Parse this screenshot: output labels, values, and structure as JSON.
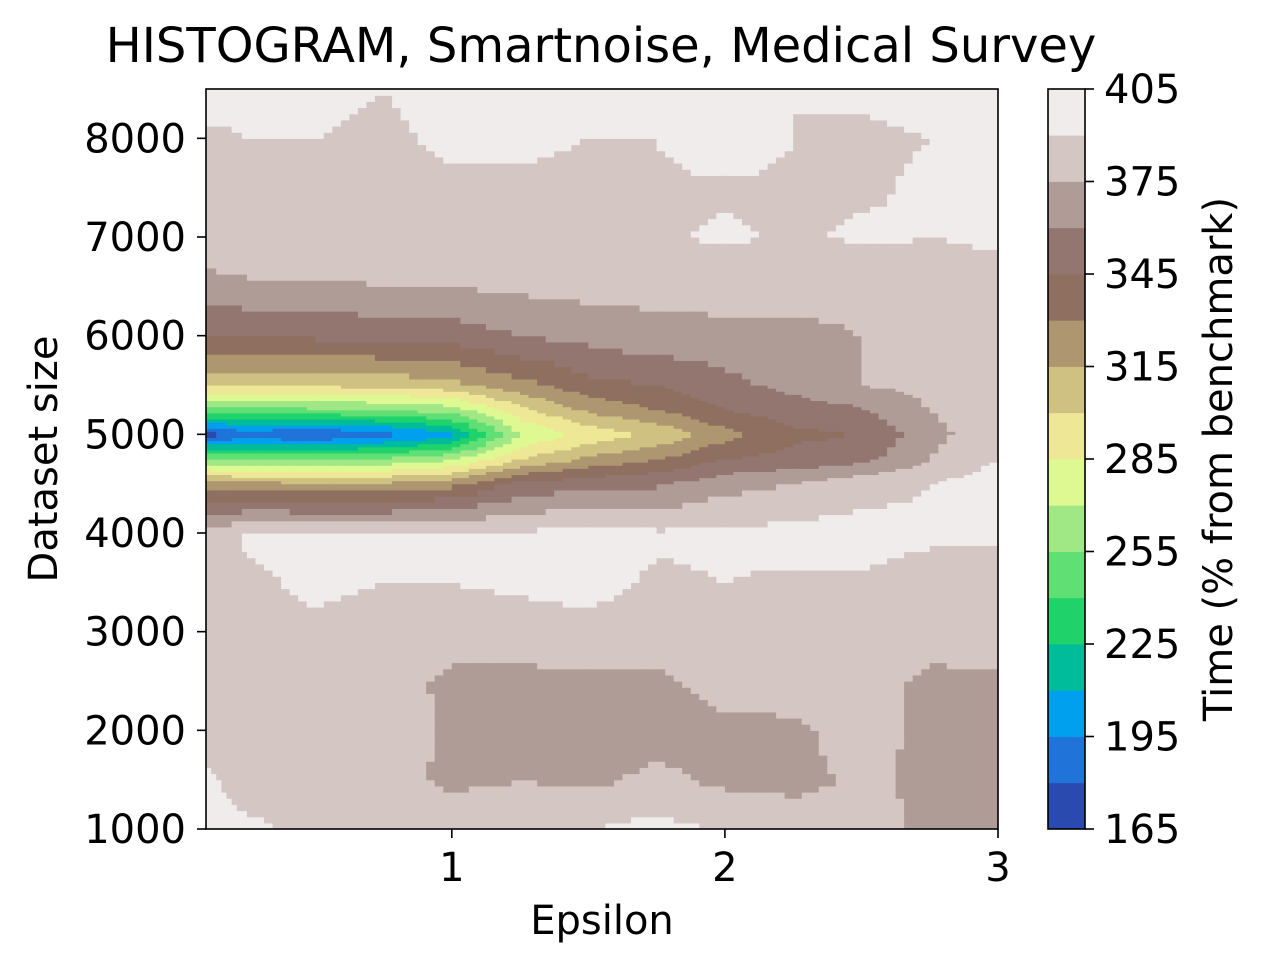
{
  "chart_data": {
    "type": "heatmap",
    "title": "HISTOGRAM, Smartnoise, Medical Survey",
    "xlabel": "Epsilon",
    "ylabel": "Dataset size",
    "colorbar_label": "Time (% from benchmark)",
    "xlim": [
      0.1,
      3.0
    ],
    "ylim": [
      1000,
      8500
    ],
    "xticks": [
      "1",
      "2",
      "3"
    ],
    "xtick_values": [
      1,
      2,
      3
    ],
    "yticks": [
      "1000",
      "2000",
      "3000",
      "4000",
      "5000",
      "6000",
      "7000",
      "8000"
    ],
    "ytick_values": [
      1000,
      2000,
      3000,
      4000,
      5000,
      6000,
      7000,
      8000
    ],
    "colorbar_ticks": [
      "165",
      "195",
      "225",
      "255",
      "285",
      "315",
      "345",
      "375",
      "405"
    ],
    "colorbar_tick_values": [
      165,
      195,
      225,
      255,
      285,
      315,
      345,
      375,
      405
    ],
    "colorbar_range": [
      165,
      405
    ],
    "levels": [
      165,
      180,
      195,
      210,
      225,
      240,
      255,
      270,
      285,
      300,
      315,
      330,
      345,
      360,
      375,
      390,
      405
    ],
    "level_colors": [
      "#2b4aaf",
      "#1f73d9",
      "#00a0ef",
      "#00bc9a",
      "#1fd36a",
      "#60df75",
      "#a0e885",
      "#dff992",
      "#eee896",
      "#cec182",
      "#ae9670",
      "#8f7060",
      "#937670",
      "#b09c97",
      "#d4c6c3",
      "#f0ecec"
    ],
    "x": [
      0.1,
      0.25,
      0.5,
      0.75,
      1.0,
      1.25,
      1.5,
      1.75,
      2.0,
      2.25,
      2.5,
      2.75,
      3.0
    ],
    "y": [
      1000,
      1500,
      2000,
      2500,
      3000,
      3500,
      4000,
      4500,
      4750,
      5000,
      5250,
      5500,
      6000,
      6500,
      7000,
      7500,
      8000,
      8500
    ],
    "z": [
      [
        395,
        392,
        388,
        380,
        385,
        383,
        390,
        395,
        388,
        385,
        380,
        372,
        368
      ],
      [
        392,
        385,
        385,
        380,
        372,
        375,
        372,
        378,
        372,
        370,
        378,
        372,
        368
      ],
      [
        385,
        385,
        385,
        385,
        372,
        370,
        370,
        370,
        372,
        372,
        382,
        370,
        368
      ],
      [
        385,
        385,
        385,
        385,
        370,
        370,
        372,
        372,
        380,
        382,
        385,
        370,
        372
      ],
      [
        385,
        385,
        388,
        385,
        385,
        385,
        385,
        385,
        385,
        385,
        385,
        385,
        385
      ],
      [
        385,
        388,
        392,
        390,
        390,
        392,
        395,
        388,
        390,
        388,
        388,
        385,
        385
      ],
      [
        380,
        392,
        392,
        392,
        392,
        392,
        395,
        392,
        392,
        395,
        395,
        392,
        392
      ],
      [
        320,
        320,
        318,
        318,
        325,
        350,
        355,
        358,
        370,
        375,
        385,
        390,
        398
      ],
      [
        258,
        255,
        255,
        258,
        268,
        300,
        318,
        330,
        345,
        350,
        355,
        375,
        390
      ],
      [
        172,
        185,
        178,
        188,
        205,
        270,
        290,
        302,
        325,
        342,
        345,
        370,
        385
      ],
      [
        250,
        250,
        252,
        255,
        262,
        295,
        318,
        330,
        345,
        352,
        358,
        375,
        388
      ],
      [
        302,
        302,
        302,
        305,
        310,
        325,
        340,
        345,
        355,
        365,
        375,
        380,
        385
      ],
      [
        345,
        345,
        348,
        350,
        352,
        360,
        365,
        370,
        370,
        372,
        375,
        375,
        378
      ],
      [
        368,
        372,
        372,
        375,
        375,
        378,
        380,
        380,
        382,
        380,
        378,
        382,
        385
      ],
      [
        388,
        388,
        388,
        388,
        388,
        388,
        388,
        388,
        392,
        388,
        392,
        390,
        392
      ],
      [
        388,
        388,
        388,
        388,
        388,
        388,
        388,
        388,
        388,
        388,
        388,
        392,
        390
      ],
      [
        388,
        390,
        390,
        388,
        392,
        392,
        390,
        390,
        398,
        390,
        388,
        390,
        392
      ],
      [
        395,
        392,
        392,
        390,
        395,
        395,
        392,
        392,
        392,
        390,
        392,
        395,
        392
      ]
    ],
    "grid": false,
    "legend": "colorbar-right"
  }
}
